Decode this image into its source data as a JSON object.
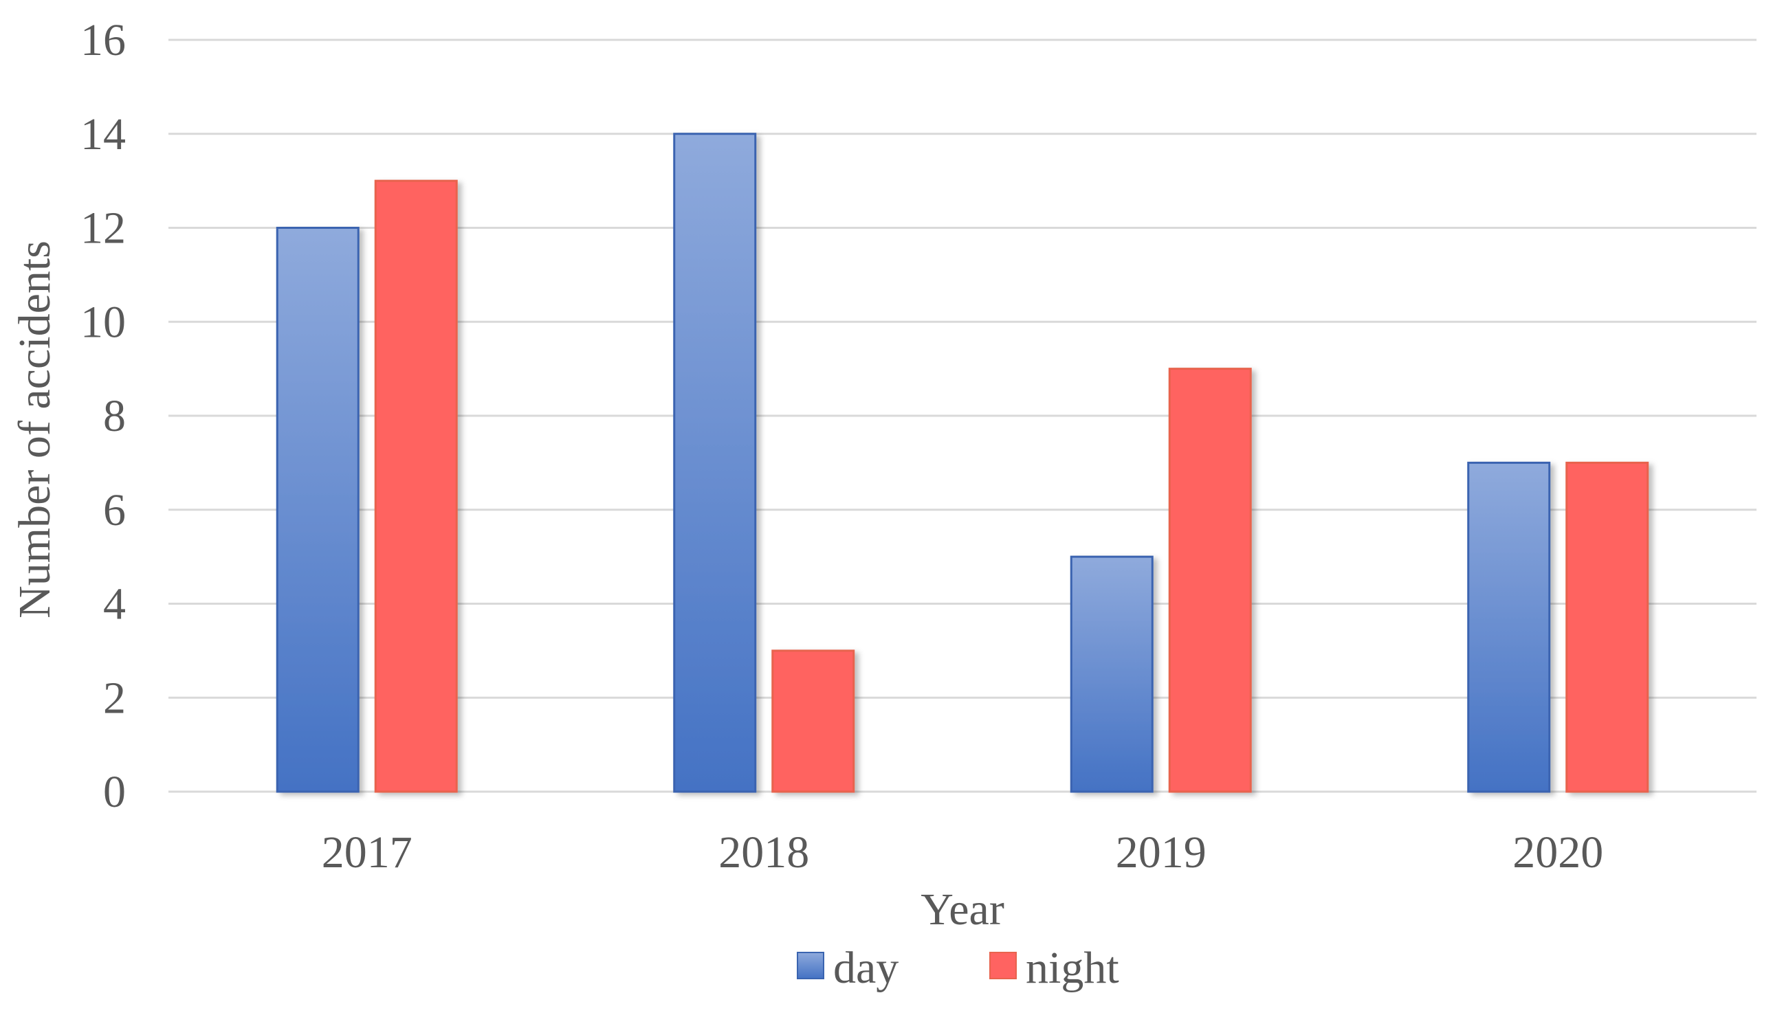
{
  "chart_data": {
    "type": "bar",
    "categories": [
      "2017",
      "2018",
      "2019",
      "2020"
    ],
    "series": [
      {
        "name": "day",
        "values": [
          12,
          14,
          5,
          7
        ],
        "color": "#4472c4"
      },
      {
        "name": "night",
        "values": [
          13,
          3,
          9,
          7
        ],
        "color": "#ff6361"
      }
    ],
    "title": "",
    "xlabel": "Year",
    "ylabel": "Number of accidents",
    "ylim": [
      0,
      16
    ],
    "yticks": [
      0,
      2,
      4,
      6,
      8,
      10,
      12,
      14,
      16
    ],
    "grid": true,
    "legend": "bottom-center"
  }
}
